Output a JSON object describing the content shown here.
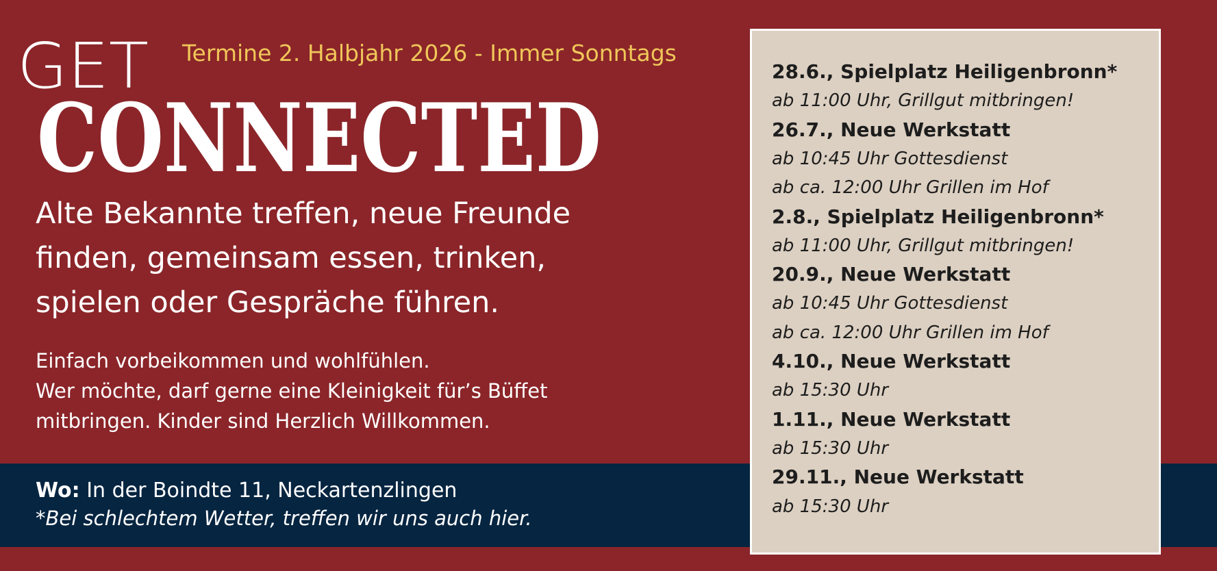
{
  "header": {
    "get": "GET",
    "title": "CONNECTED",
    "subtitle": "Termine 2. Halbjahr 2026 - Immer Sonntags"
  },
  "intro": [
    "Alte Bekannte treffen, neue Freunde",
    "finden, gemeinsam essen, trinken,",
    "spielen oder Gespräche führen."
  ],
  "details": [
    "Einfach vorbeikommen und wohlfühlen.",
    "Wer möchte, darf gerne eine Kleinigkeit für’s Büffet",
    "mitbringen. Kinder sind Herzlich Willkommen."
  ],
  "location": {
    "label": "Wo:",
    "address": "In der Boindte 11, Neckartenzlingen",
    "note": "*Bei schlechtem Wetter, treffen wir uns auch hier."
  },
  "events": [
    {
      "title": "28.6., Spielplatz Heiligenbronn*",
      "details": [
        "ab 11:00 Uhr, Grillgut mitbringen!"
      ]
    },
    {
      "title": "26.7., Neue Werkstatt",
      "details": [
        "ab 10:45 Uhr Gottesdienst",
        "ab ca. 12:00 Uhr Grillen im Hof"
      ]
    },
    {
      "title": "2.8., Spielplatz Heiligenbronn*",
      "details": [
        "ab 11:00 Uhr, Grillgut mitbringen!"
      ]
    },
    {
      "title": "20.9., Neue Werkstatt",
      "details": [
        "ab 10:45 Uhr Gottesdienst",
        "ab ca. 12:00 Uhr Grillen im Hof"
      ]
    },
    {
      "title": "4.10., Neue Werkstatt",
      "details": [
        "ab 15:30 Uhr"
      ]
    },
    {
      "title": "1.11., Neue Werkstatt",
      "details": [
        "ab 15:30 Uhr"
      ]
    },
    {
      "title": "29.11., Neue Werkstatt",
      "details": [
        "ab 15:30 Uhr"
      ]
    }
  ]
}
